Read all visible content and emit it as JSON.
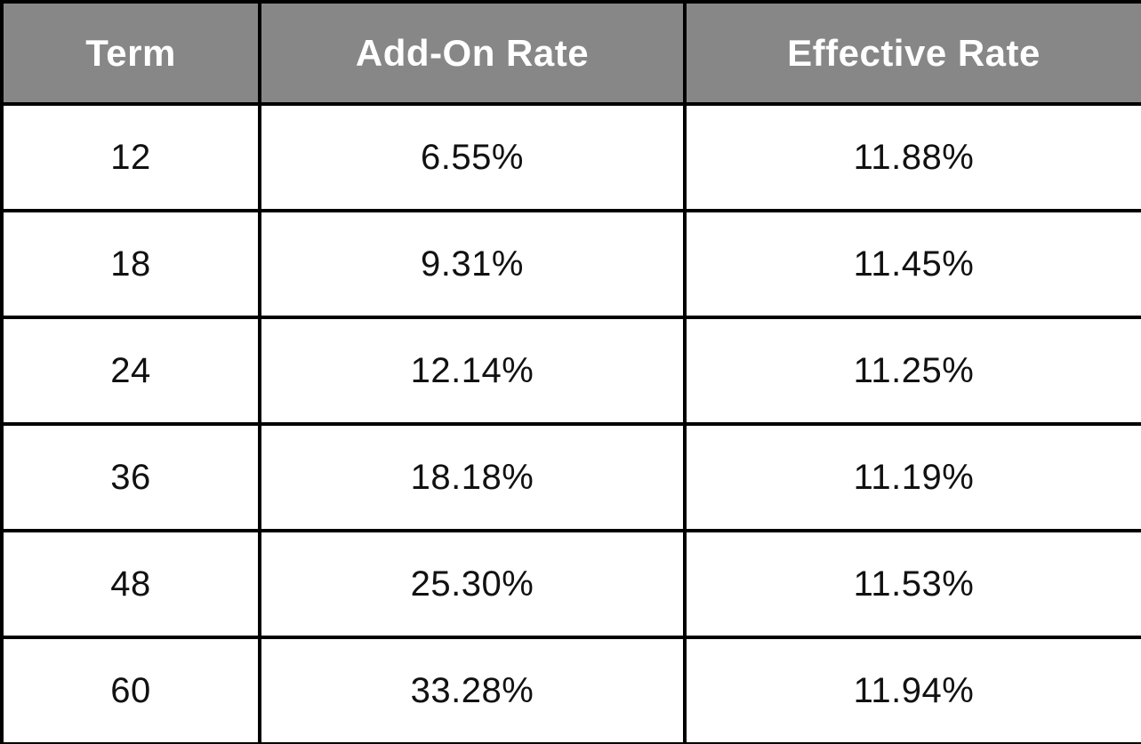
{
  "table": {
    "columns": [
      {
        "key": "term",
        "label": "Term"
      },
      {
        "key": "addon_rate",
        "label": "Add-On Rate"
      },
      {
        "key": "effective_rate",
        "label": "Effective Rate"
      }
    ],
    "rows": [
      {
        "term": "12",
        "addon_rate": "6.55%",
        "effective_rate": "11.88%"
      },
      {
        "term": "18",
        "addon_rate": "9.31%",
        "effective_rate": "11.45%"
      },
      {
        "term": "24",
        "addon_rate": "12.14%",
        "effective_rate": "11.25%"
      },
      {
        "term": "36",
        "addon_rate": "18.18%",
        "effective_rate": "11.19%"
      },
      {
        "term": "48",
        "addon_rate": "25.30%",
        "effective_rate": "11.53%"
      },
      {
        "term": "60",
        "addon_rate": "33.28%",
        "effective_rate": "11.94%"
      }
    ]
  },
  "colors": {
    "header_background": "#878787",
    "header_text": "#ffffff",
    "border": "#000000",
    "cell_background": "#ffffff",
    "cell_text": "#111111"
  },
  "chart_data": {
    "type": "table",
    "title": "",
    "columns": [
      "Term",
      "Add-On Rate",
      "Effective Rate"
    ],
    "rows": [
      [
        "12",
        "6.55%",
        "11.88%"
      ],
      [
        "18",
        "9.31%",
        "11.45%"
      ],
      [
        "24",
        "12.14%",
        "11.25%"
      ],
      [
        "36",
        "18.18%",
        "11.19%"
      ],
      [
        "48",
        "25.30%",
        "11.53%"
      ],
      [
        "60",
        "33.28%",
        "11.94%"
      ]
    ],
    "numeric": {
      "term_months": [
        12,
        18,
        24,
        36,
        48,
        60
      ],
      "addon_rate_pct": [
        6.55,
        9.31,
        12.14,
        18.18,
        25.3,
        33.28
      ],
      "effective_rate_pct": [
        11.88,
        11.45,
        11.25,
        11.19,
        11.53,
        11.94
      ]
    },
    "layout_hints": {
      "header_style": "gray background, white bold text",
      "grid": "black 4px borders, centered cells"
    }
  }
}
